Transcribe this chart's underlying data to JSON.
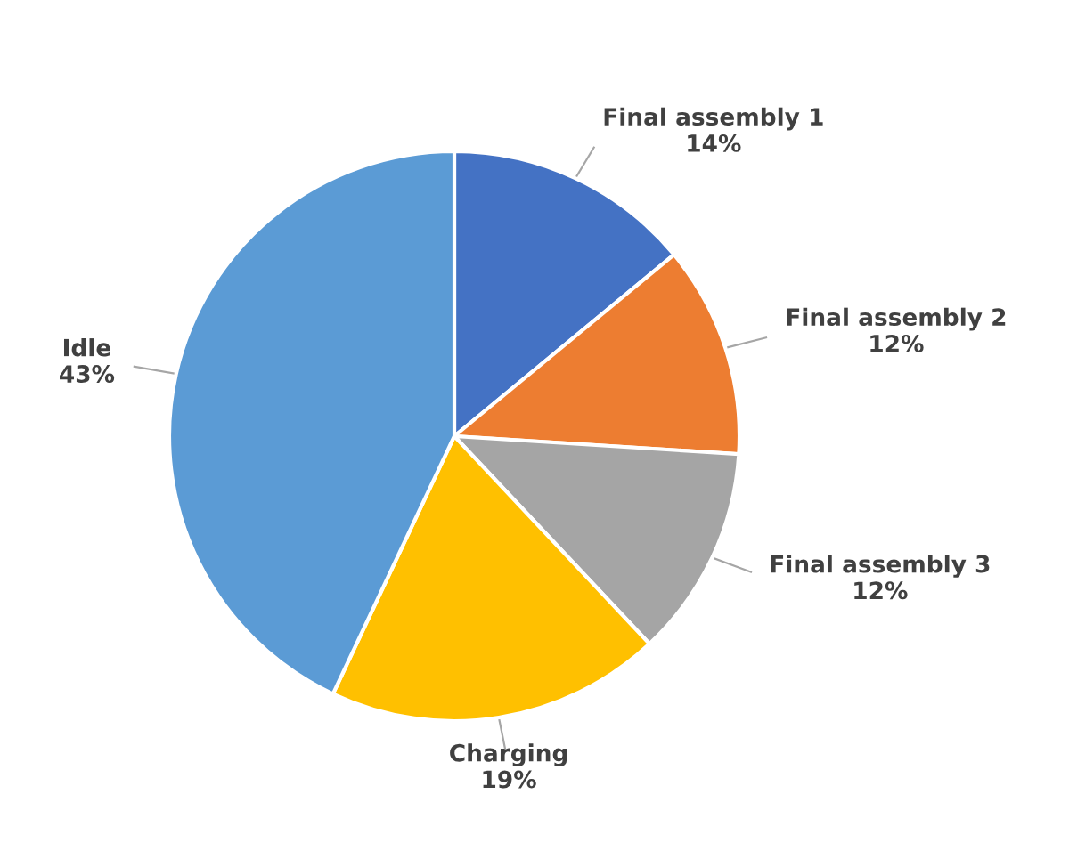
{
  "chart_data": {
    "type": "pie",
    "categories": [
      "Final assembly 1",
      "Final assembly 2",
      "Final assembly 3",
      "Charging",
      "Idle"
    ],
    "values": [
      14,
      12,
      12,
      19,
      43
    ],
    "colors": [
      "#4472c4",
      "#ed7d31",
      "#a5a5a5",
      "#ffc000",
      "#5b9bd5"
    ],
    "value_labels": [
      "14%",
      "12%",
      "12%",
      "19%",
      "43%"
    ],
    "legend": false
  }
}
